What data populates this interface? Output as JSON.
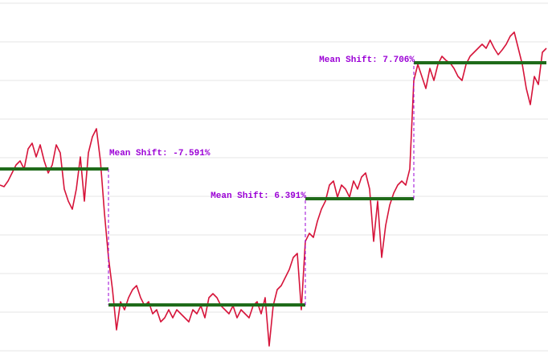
{
  "chart_data": {
    "type": "line",
    "x": [
      0,
      1,
      2,
      3,
      4,
      5,
      6,
      7,
      8,
      9,
      10,
      11,
      12,
      13,
      14,
      15,
      16,
      17,
      18,
      19,
      20,
      21,
      22,
      23,
      24,
      25,
      26,
      27,
      28,
      29,
      30,
      31,
      32,
      33,
      34,
      35,
      36,
      37,
      38,
      39,
      40,
      41,
      42,
      43,
      44,
      45,
      46,
      47,
      48,
      49,
      50,
      51,
      52,
      53,
      54,
      55,
      56,
      57,
      58,
      59,
      60,
      61,
      62,
      63,
      64,
      65,
      66,
      67,
      68,
      69,
      70,
      71,
      72,
      73,
      74,
      75,
      76,
      77,
      78,
      79,
      80,
      81,
      82,
      83,
      84,
      85,
      86,
      87,
      88,
      89,
      90,
      91,
      92,
      93,
      94,
      95,
      96,
      97,
      98,
      99,
      100,
      101,
      102,
      103,
      104,
      105,
      106,
      107,
      108,
      109,
      110,
      111,
      112,
      113,
      114,
      115,
      116,
      117,
      118,
      119,
      120,
      121,
      122,
      123,
      124,
      125,
      126,
      127,
      128,
      129,
      130,
      131,
      132,
      133,
      134,
      135,
      136
    ],
    "series": [
      {
        "color": "#d6143a",
        "values": [
          206,
          204,
          211,
          221,
          231,
          236,
          226,
          251,
          258,
          241,
          256,
          236,
          221,
          231,
          256,
          246,
          201,
          186,
          176,
          201,
          241,
          186,
          246,
          266,
          276,
          236,
          171,
          116,
          76,
          26,
          61,
          51,
          66,
          76,
          81,
          66,
          56,
          61,
          46,
          51,
          36,
          41,
          51,
          41,
          51,
          46,
          41,
          36,
          51,
          46,
          56,
          41,
          66,
          71,
          66,
          56,
          51,
          46,
          56,
          41,
          51,
          46,
          41,
          56,
          61,
          46,
          66,
          6,
          56,
          76,
          81,
          91,
          101,
          116,
          121,
          51,
          136,
          146,
          141,
          161,
          176,
          186,
          206,
          211,
          191,
          206,
          201,
          191,
          211,
          201,
          216,
          221,
          201,
          136,
          186,
          116,
          156,
          181,
          196,
          206,
          211,
          206,
          226,
          336,
          356,
          341,
          326,
          351,
          336,
          356,
          366,
          361,
          358,
          351,
          341,
          336,
          356,
          366,
          371,
          376,
          381,
          376,
          386,
          376,
          368,
          374,
          381,
          391,
          396,
          376,
          356,
          326,
          306,
          341,
          331,
          371,
          376
        ]
      }
    ],
    "segments": [
      {
        "x": [
          0,
          27
        ],
        "value": 226
      },
      {
        "x": [
          27,
          76
        ],
        "value": 57
      },
      {
        "x": [
          76,
          103
        ],
        "value": 189
      },
      {
        "x": [
          103,
          136
        ],
        "value": 358
      }
    ],
    "segment_color": "#1f6b1a",
    "annotations": [
      {
        "text": "Mean Shift: -7.591%",
        "color": "#9b00d6"
      },
      {
        "text": "Mean Shift: 6.391%",
        "color": "#9b00d6"
      },
      {
        "text": "Mean Shift: 7.706%",
        "color": "#9b00d6"
      }
    ],
    "xlim": [
      0,
      136
    ],
    "ylim": [
      0,
      432
    ],
    "yticks": [
      0,
      48,
      96,
      144,
      192,
      240,
      288,
      336,
      384,
      432
    ],
    "grid": true
  }
}
